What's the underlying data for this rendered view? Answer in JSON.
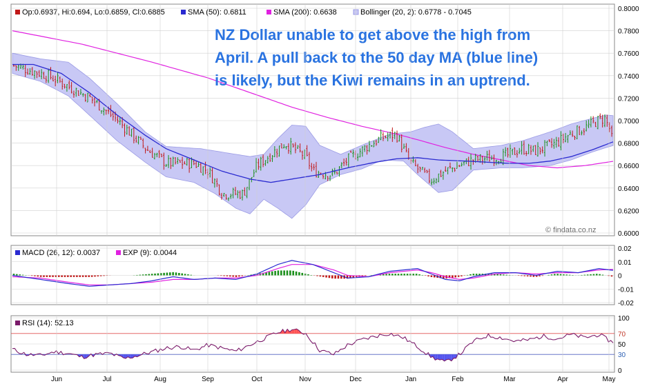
{
  "colors": {
    "sma50": "#2a2ad0",
    "sma200": "#e020e0",
    "bollinger_fill": "#c8c8f5",
    "bollinger_edge": "#9b9be5",
    "candle_up": "#1a8f1a",
    "candle_down": "#c01818",
    "macd_line": "#2a2ad0",
    "exp_line": "#e020e0",
    "hist_pos": "#1a8f1a",
    "hist_neg": "#c01818",
    "rsi_line": "#7a1a6a",
    "rsi_over": "#ff5555",
    "rsi_under": "#5555ee",
    "panel_border": "#888888",
    "grid": "#d0d0d0"
  },
  "legend": {
    "ohlc": "Op:0.6937, Hi:0.694, Lo:0.6859, Cl:0.6885",
    "sma50": "SMA (50): 0.6811",
    "sma200": "SMA (200): 0.6638",
    "bollinger": "Bollinger (20, 2): 0.6778 - 0.7045",
    "macd": "MACD (26, 12): 0.0037",
    "exp": "EXP (9): 0.0044",
    "rsi": "RSI (14): 52.13"
  },
  "annotation": {
    "line1": "NZ Dollar unable to get above the high from",
    "line2": "April. A pull back to the 50 day MA (blue line)",
    "line3": "is likely, but the Kiwi remains in an uptrend."
  },
  "watermark": "© findata.co.nz",
  "chart_data": [
    {
      "type": "candlestick",
      "title": "",
      "ylim": [
        0.6,
        0.8
      ],
      "yticks": [
        "0.6000",
        "0.6200",
        "0.6400",
        "0.6600",
        "0.6800",
        "0.7000",
        "0.7200",
        "0.7400",
        "0.7600",
        "0.7800",
        "0.8000"
      ],
      "xticks": [
        "Jun",
        "Jul",
        "Aug",
        "Sep",
        "Oct",
        "Nov",
        "Dec",
        "Jan",
        "Feb",
        "Mar",
        "Apr",
        "May"
      ],
      "last_bar": {
        "open": 0.6937,
        "high": 0.694,
        "low": 0.6859,
        "close": 0.6885
      },
      "close_trend": [
        [
          0,
          0.749
        ],
        [
          5,
          0.74
        ],
        [
          11,
          0.72
        ],
        [
          15,
          0.7
        ],
        [
          19,
          0.675
        ],
        [
          22,
          0.662
        ],
        [
          26,
          0.662
        ],
        [
          28,
          0.655
        ],
        [
          30,
          0.635
        ],
        [
          33,
          0.635
        ],
        [
          35,
          0.66
        ],
        [
          37,
          0.67
        ],
        [
          39,
          0.68
        ],
        [
          42,
          0.668
        ],
        [
          43,
          0.655
        ],
        [
          46,
          0.652
        ],
        [
          48,
          0.665
        ],
        [
          51,
          0.678
        ],
        [
          53,
          0.685
        ],
        [
          55,
          0.688
        ],
        [
          57,
          0.663
        ],
        [
          60,
          0.647
        ],
        [
          62,
          0.655
        ],
        [
          66,
          0.665
        ],
        [
          69,
          0.667
        ],
        [
          71,
          0.669
        ],
        [
          73,
          0.675
        ],
        [
          75,
          0.673
        ],
        [
          78,
          0.68
        ],
        [
          80,
          0.688
        ],
        [
          82,
          0.693
        ],
        [
          84,
          0.7
        ],
        [
          85,
          0.702
        ],
        [
          86,
          0.6885
        ]
      ],
      "series": [
        {
          "name": "SMA (50)",
          "points": [
            [
              0,
              0.75
            ],
            [
              3,
              0.75
            ],
            [
              7,
              0.742
            ],
            [
              11,
              0.725
            ],
            [
              15,
              0.705
            ],
            [
              19,
              0.687
            ],
            [
              22,
              0.675
            ],
            [
              26,
              0.665
            ],
            [
              30,
              0.655
            ],
            [
              34,
              0.648
            ],
            [
              37,
              0.645
            ],
            [
              40,
              0.648
            ],
            [
              44,
              0.652
            ],
            [
              48,
              0.658
            ],
            [
              52,
              0.663
            ],
            [
              55,
              0.666
            ],
            [
              58,
              0.667
            ],
            [
              61,
              0.665
            ],
            [
              65,
              0.664
            ],
            [
              68,
              0.663
            ],
            [
              71,
              0.662
            ],
            [
              74,
              0.662
            ],
            [
              77,
              0.664
            ],
            [
              80,
              0.668
            ],
            [
              83,
              0.674
            ],
            [
              86,
              0.6811
            ]
          ]
        },
        {
          "name": "SMA (200)",
          "points": [
            [
              0,
              0.78
            ],
            [
              10,
              0.768
            ],
            [
              20,
              0.752
            ],
            [
              28,
              0.738
            ],
            [
              34,
              0.725
            ],
            [
              40,
              0.712
            ],
            [
              45,
              0.703
            ],
            [
              50,
              0.695
            ],
            [
              55,
              0.688
            ],
            [
              58,
              0.683
            ],
            [
              62,
              0.676
            ],
            [
              66,
              0.67
            ],
            [
              70,
              0.665
            ],
            [
              74,
              0.66
            ],
            [
              78,
              0.658
            ],
            [
              82,
              0.66
            ],
            [
              86,
              0.6638
            ]
          ]
        },
        {
          "name": "Bollinger upper",
          "points": [
            [
              0,
              0.76
            ],
            [
              4,
              0.755
            ],
            [
              8,
              0.752
            ],
            [
              11,
              0.738
            ],
            [
              15,
              0.715
            ],
            [
              19,
              0.69
            ],
            [
              22,
              0.677
            ],
            [
              27,
              0.675
            ],
            [
              30,
              0.672
            ],
            [
              34,
              0.668
            ],
            [
              36,
              0.67
            ],
            [
              38,
              0.684
            ],
            [
              40,
              0.696
            ],
            [
              42,
              0.695
            ],
            [
              44,
              0.678
            ],
            [
              47,
              0.67
            ],
            [
              50,
              0.678
            ],
            [
              54,
              0.688
            ],
            [
              57,
              0.69
            ],
            [
              59,
              0.694
            ],
            [
              61,
              0.697
            ],
            [
              63,
              0.69
            ],
            [
              66,
              0.675
            ],
            [
              70,
              0.678
            ],
            [
              73,
              0.682
            ],
            [
              77,
              0.69
            ],
            [
              80,
              0.697
            ],
            [
              83,
              0.702
            ],
            [
              85,
              0.705
            ],
            [
              86,
              0.7045
            ]
          ]
        },
        {
          "name": "Bollinger lower",
          "points": [
            [
              0,
              0.742
            ],
            [
              4,
              0.735
            ],
            [
              8,
              0.722
            ],
            [
              11,
              0.705
            ],
            [
              15,
              0.682
            ],
            [
              19,
              0.663
            ],
            [
              22,
              0.65
            ],
            [
              26,
              0.645
            ],
            [
              29,
              0.635
            ],
            [
              32,
              0.622
            ],
            [
              34,
              0.617
            ],
            [
              36,
              0.63
            ],
            [
              38,
              0.622
            ],
            [
              40,
              0.613
            ],
            [
              42,
              0.625
            ],
            [
              44,
              0.643
            ],
            [
              47,
              0.652
            ],
            [
              50,
              0.657
            ],
            [
              53,
              0.665
            ],
            [
              56,
              0.664
            ],
            [
              58,
              0.652
            ],
            [
              61,
              0.636
            ],
            [
              63,
              0.638
            ],
            [
              66,
              0.656
            ],
            [
              70,
              0.658
            ],
            [
              73,
              0.658
            ],
            [
              77,
              0.66
            ],
            [
              80,
              0.665
            ],
            [
              83,
              0.672
            ],
            [
              85,
              0.676
            ],
            [
              86,
              0.6778
            ]
          ]
        }
      ]
    },
    {
      "type": "line",
      "title": "",
      "ylim": [
        -0.02,
        0.02
      ],
      "yticks": [
        "0.02",
        "0.01",
        "0",
        "-0.01",
        "-0.02"
      ],
      "series": [
        {
          "name": "MACD (26, 12)",
          "points": [
            [
              0,
              0.0
            ],
            [
              4,
              -0.003
            ],
            [
              8,
              -0.006
            ],
            [
              11,
              -0.008
            ],
            [
              14,
              -0.007
            ],
            [
              17,
              -0.006
            ],
            [
              20,
              -0.004
            ],
            [
              23,
              -0.001
            ],
            [
              26,
              -0.003
            ],
            [
              29,
              -0.002
            ],
            [
              32,
              -0.003
            ],
            [
              35,
              0.001
            ],
            [
              38,
              0.008
            ],
            [
              40,
              0.011
            ],
            [
              43,
              0.008
            ],
            [
              46,
              0.002
            ],
            [
              48,
              -0.002
            ],
            [
              51,
              -0.001
            ],
            [
              54,
              0.003
            ],
            [
              56,
              0.004
            ],
            [
              58,
              0.005
            ],
            [
              60,
              0.001
            ],
            [
              62,
              -0.003
            ],
            [
              64,
              -0.004
            ],
            [
              66,
              -0.001
            ],
            [
              69,
              0.002
            ],
            [
              72,
              0.002
            ],
            [
              75,
              0.0
            ],
            [
              78,
              0.003
            ],
            [
              81,
              0.002
            ],
            [
              84,
              0.005
            ],
            [
              86,
              0.0037
            ]
          ]
        },
        {
          "name": "EXP (9)",
          "points": [
            [
              0,
              -0.001
            ],
            [
              4,
              -0.002
            ],
            [
              8,
              -0.005
            ],
            [
              11,
              -0.007
            ],
            [
              14,
              -0.007
            ],
            [
              17,
              -0.006
            ],
            [
              20,
              -0.005
            ],
            [
              23,
              -0.003
            ],
            [
              26,
              -0.003
            ],
            [
              29,
              -0.002
            ],
            [
              32,
              -0.002
            ],
            [
              35,
              0.0
            ],
            [
              38,
              0.005
            ],
            [
              40,
              0.008
            ],
            [
              43,
              0.008
            ],
            [
              46,
              0.004
            ],
            [
              48,
              0.0
            ],
            [
              51,
              -0.001
            ],
            [
              54,
              0.002
            ],
            [
              56,
              0.003
            ],
            [
              58,
              0.004
            ],
            [
              60,
              0.002
            ],
            [
              62,
              -0.001
            ],
            [
              64,
              -0.003
            ],
            [
              66,
              -0.002
            ],
            [
              69,
              0.001
            ],
            [
              72,
              0.002
            ],
            [
              75,
              0.001
            ],
            [
              78,
              0.002
            ],
            [
              81,
              0.002
            ],
            [
              84,
              0.004
            ],
            [
              86,
              0.0044
            ]
          ]
        }
      ]
    },
    {
      "type": "line",
      "title": "",
      "ylim": [
        0,
        100
      ],
      "yticks": [
        "100",
        "70",
        "50",
        "30",
        "0"
      ],
      "thresholds": [
        70,
        30
      ],
      "series": [
        {
          "name": "RSI (14)",
          "points": [
            [
              0,
              40
            ],
            [
              2,
              30
            ],
            [
              4,
              28
            ],
            [
              6,
              35
            ],
            [
              8,
              32
            ],
            [
              10,
              25
            ],
            [
              12,
              30
            ],
            [
              14,
              32
            ],
            [
              16,
              22
            ],
            [
              18,
              28
            ],
            [
              20,
              35
            ],
            [
              22,
              42
            ],
            [
              24,
              45
            ],
            [
              26,
              38
            ],
            [
              28,
              48
            ],
            [
              30,
              42
            ],
            [
              32,
              36
            ],
            [
              34,
              48
            ],
            [
              36,
              60
            ],
            [
              38,
              72
            ],
            [
              40,
              78
            ],
            [
              42,
              70
            ],
            [
              44,
              38
            ],
            [
              46,
              30
            ],
            [
              48,
              48
            ],
            [
              50,
              58
            ],
            [
              52,
              65
            ],
            [
              54,
              70
            ],
            [
              56,
              62
            ],
            [
              58,
              45
            ],
            [
              60,
              25
            ],
            [
              62,
              15
            ],
            [
              64,
              30
            ],
            [
              66,
              55
            ],
            [
              68,
              66
            ],
            [
              70,
              62
            ],
            [
              72,
              55
            ],
            [
              74,
              58
            ],
            [
              76,
              65
            ],
            [
              78,
              60
            ],
            [
              80,
              68
            ],
            [
              82,
              62
            ],
            [
              84,
              68
            ],
            [
              86,
              52.13
            ]
          ]
        }
      ]
    }
  ]
}
